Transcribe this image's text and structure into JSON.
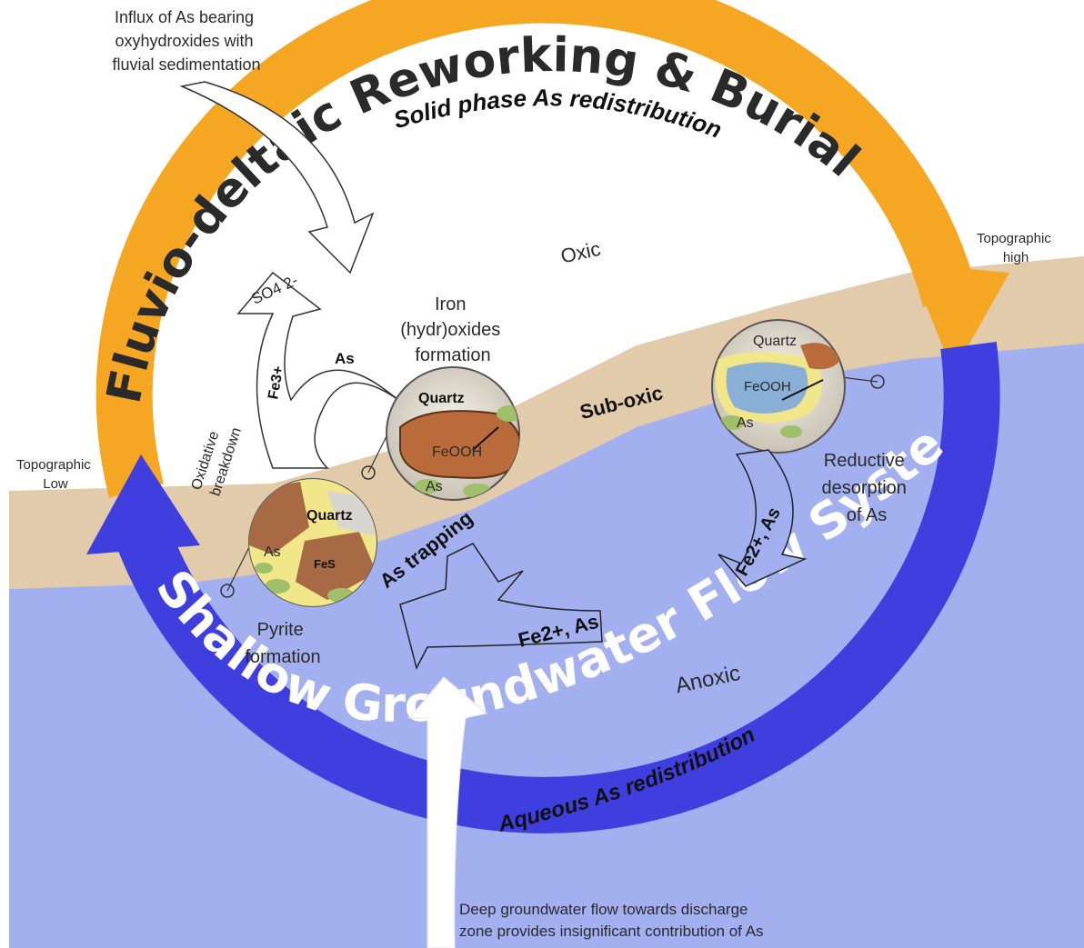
{
  "diagram": {
    "top_ring_label": "Fluvio-deltaic Reworking & Burial",
    "bottom_ring_label": "Shallow Groundwater Flow System",
    "solid_phase_label": "Solid phase As redistribution",
    "aqueous_label": "Aqueous As redistribution",
    "influx_note": [
      "Influx of As bearing",
      "oxyhydroxides with",
      "fluvial sedimentation"
    ],
    "topographic_high": [
      "Topographic",
      "high"
    ],
    "topographic_low": [
      "Topographic",
      "Low"
    ],
    "zones": {
      "oxic": "Oxic",
      "suboxic": "Sub-oxic",
      "anoxic": "Anoxic"
    },
    "oxidative_breakdown": [
      "Oxidative",
      "breakdown"
    ],
    "iron_oxides_formation": [
      "Iron",
      "(hydr)oxides",
      "formation"
    ],
    "reductive_desorption": [
      "Reductive",
      "desorption",
      "of As"
    ],
    "pyrite_formation": [
      "Pyrite",
      "formation"
    ],
    "as_trapping": "As trapping",
    "fe2_as": "Fe2+, As",
    "fe3": "Fe3+",
    "so4": "SO4 2-",
    "as": "As",
    "quartz": "Quartz",
    "feooh": "FeOOH",
    "fes": "FeS",
    "deep_flow_note": [
      "Deep groundwater flow towards discharge",
      "zone provides insignificant contribution of As"
    ],
    "colors": {
      "orange_arrow": "#F5A623",
      "blue_arrow": "#3F3FE0",
      "sand": "#E2CBAA",
      "water": "#A3B0F0"
    }
  }
}
